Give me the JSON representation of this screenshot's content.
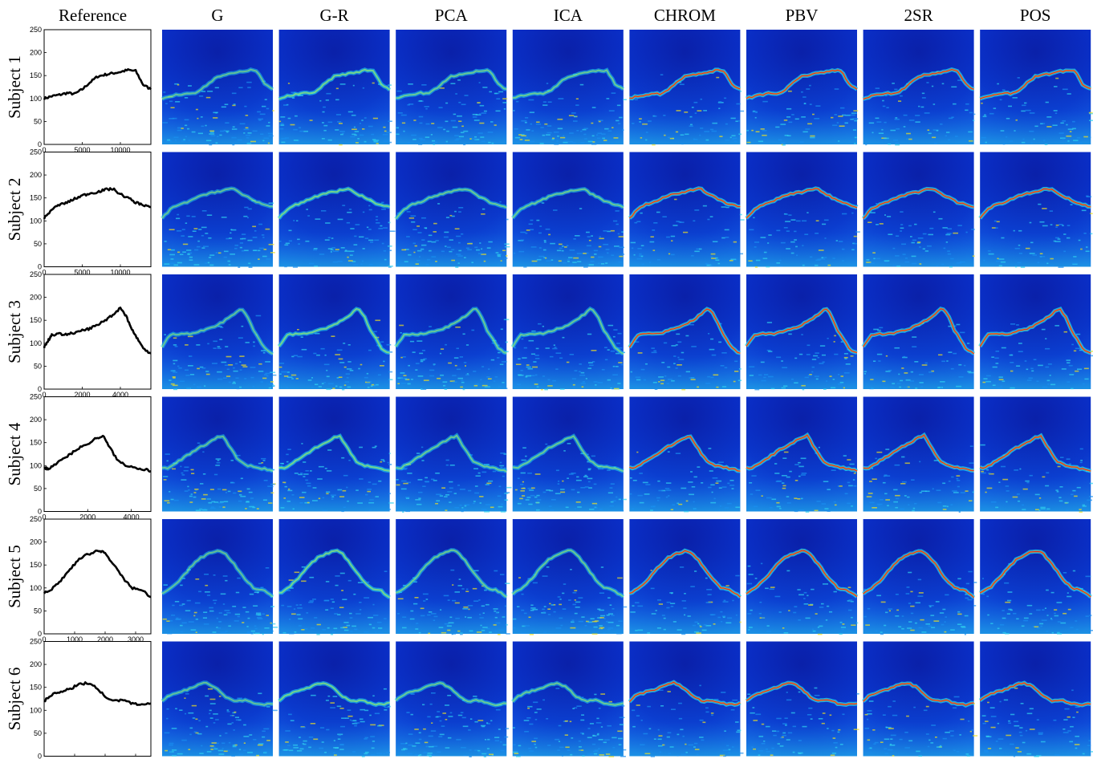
{
  "figure": {
    "columns": [
      "Reference",
      "G",
      "G-R",
      "PCA",
      "ICA",
      "CHROM",
      "PBV",
      "2SR",
      "POS"
    ],
    "rows": [
      "Subject 1",
      "Subject 2",
      "Subject 3",
      "Subject 4",
      "Subject 5",
      "Subject 6"
    ]
  },
  "chart_data": [
    {
      "type": "line",
      "subject": "Subject 1",
      "ylim": [
        0,
        250
      ],
      "yticks": [
        0,
        50,
        100,
        150,
        200,
        250
      ],
      "xlim": [
        0,
        14000
      ],
      "xticks": [
        0,
        5000,
        10000
      ],
      "x": [
        0,
        1000,
        2000,
        3000,
        4000,
        5000,
        6000,
        7000,
        8000,
        9000,
        10000,
        11000,
        12000,
        13000,
        14000
      ],
      "y": [
        100,
        105,
        108,
        112,
        110,
        120,
        135,
        148,
        152,
        155,
        158,
        162,
        160,
        130,
        120
      ]
    },
    {
      "type": "line",
      "subject": "Subject 2",
      "ylim": [
        0,
        250
      ],
      "yticks": [
        0,
        50,
        100,
        150,
        200,
        250
      ],
      "xlim": [
        0,
        14000
      ],
      "xticks": [
        0,
        5000,
        10000
      ],
      "x": [
        0,
        1000,
        2000,
        3000,
        4000,
        5000,
        6000,
        7000,
        8000,
        9000,
        10000,
        11000,
        12000,
        13000,
        14000
      ],
      "y": [
        105,
        125,
        135,
        140,
        148,
        155,
        160,
        163,
        168,
        170,
        158,
        150,
        140,
        135,
        130
      ]
    },
    {
      "type": "line",
      "subject": "Subject 3",
      "ylim": [
        0,
        250
      ],
      "yticks": [
        0,
        50,
        100,
        150,
        200,
        250
      ],
      "xlim": [
        0,
        5600
      ],
      "xticks": [
        0,
        2000,
        4000
      ],
      "x": [
        0,
        200,
        400,
        800,
        1200,
        1600,
        2000,
        2400,
        2800,
        3200,
        3600,
        4000,
        4300,
        4600,
        4900,
        5200,
        5600
      ],
      "y": [
        92,
        105,
        118,
        120,
        120,
        122,
        128,
        132,
        140,
        150,
        162,
        177,
        160,
        130,
        110,
        88,
        78
      ]
    },
    {
      "type": "line",
      "subject": "Subject 4",
      "ylim": [
        0,
        250
      ],
      "yticks": [
        0,
        50,
        100,
        150,
        200,
        250
      ],
      "xlim": [
        0,
        4900
      ],
      "xticks": [
        0,
        2000,
        4000
      ],
      "x": [
        0,
        200,
        400,
        800,
        1200,
        1600,
        2000,
        2400,
        2700,
        3000,
        3400,
        3800,
        4200,
        4600,
        4900
      ],
      "y": [
        95,
        93,
        100,
        112,
        125,
        138,
        148,
        160,
        165,
        140,
        110,
        100,
        96,
        92,
        88
      ]
    },
    {
      "type": "line",
      "subject": "Subject 5",
      "ylim": [
        0,
        250
      ],
      "yticks": [
        0,
        50,
        100,
        150,
        200,
        250
      ],
      "xlim": [
        0,
        3500
      ],
      "xticks": [
        0,
        1000,
        2000,
        3000
      ],
      "x": [
        0,
        300,
        600,
        900,
        1200,
        1500,
        1800,
        2000,
        2300,
        2600,
        2900,
        3200,
        3500
      ],
      "y": [
        88,
        100,
        120,
        145,
        165,
        175,
        182,
        175,
        150,
        120,
        100,
        95,
        80
      ]
    },
    {
      "type": "line",
      "subject": "Subject 6",
      "ylim": [
        0,
        250
      ],
      "yticks": [
        0,
        50,
        100,
        150,
        200,
        250
      ],
      "xlim": [
        0,
        3500
      ],
      "xticks": [
        0,
        1000,
        2000,
        3000
      ],
      "x": [
        0,
        200,
        500,
        800,
        1100,
        1400,
        1700,
        2000,
        2300,
        2600,
        2900,
        3200,
        3500
      ],
      "y": [
        120,
        132,
        140,
        145,
        155,
        160,
        150,
        130,
        120,
        122,
        115,
        112,
        115
      ]
    }
  ]
}
